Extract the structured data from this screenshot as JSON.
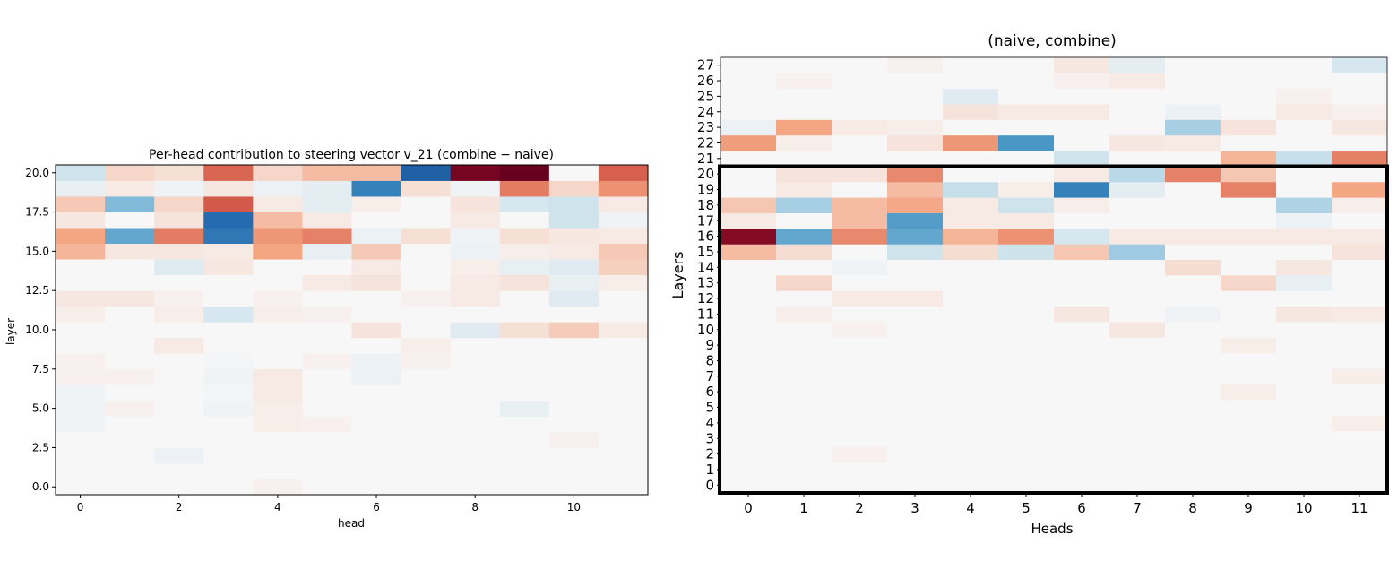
{
  "chart_data": [
    {
      "type": "heatmap",
      "title": "Per-head contribution to steering vector v_21 (combine − naive)",
      "xlabel": "head",
      "ylabel": "layer",
      "x_categories": [
        0,
        1,
        2,
        3,
        4,
        5,
        6,
        7,
        8,
        9,
        10,
        11
      ],
      "y_categories": [
        0,
        1,
        2,
        3,
        4,
        5,
        6,
        7,
        8,
        9,
        10,
        11,
        12,
        13,
        14,
        15,
        16,
        17,
        18,
        19,
        20
      ],
      "x_ticks": [
        "0",
        "2",
        "4",
        "6",
        "8",
        "10"
      ],
      "y_ticks": [
        "0.0",
        "2.5",
        "5.0",
        "7.5",
        "10.0",
        "12.5",
        "15.0",
        "17.5",
        "20.0"
      ],
      "ylim": [
        -0.5,
        20.5
      ],
      "colormap": "RdBu_r",
      "vmin": -1,
      "vmax": 1,
      "values": [
        [
          0.0,
          0.0,
          0.0,
          0.0,
          0.02,
          0.0,
          0.0,
          0.0,
          0.0,
          0.0,
          0.0,
          0.0
        ],
        [
          0.0,
          0.0,
          0.0,
          0.0,
          0.0,
          0.0,
          0.0,
          0.0,
          0.0,
          0.0,
          0.0,
          0.0
        ],
        [
          0.0,
          0.0,
          -0.03,
          0.0,
          0.0,
          0.0,
          0.0,
          0.0,
          0.0,
          0.0,
          0.0,
          0.0
        ],
        [
          0.0,
          0.0,
          0.0,
          0.0,
          0.0,
          0.0,
          0.0,
          0.0,
          0.0,
          0.0,
          0.02,
          0.0
        ],
        [
          -0.02,
          0.0,
          0.0,
          0.0,
          0.03,
          0.02,
          0.0,
          0.0,
          0.0,
          0.0,
          0.0,
          0.0
        ],
        [
          -0.02,
          0.02,
          0.0,
          -0.02,
          0.03,
          0.0,
          0.0,
          0.0,
          0.0,
          -0.04,
          0.0,
          0.0
        ],
        [
          -0.02,
          0.0,
          0.0,
          -0.01,
          0.04,
          0.0,
          0.0,
          0.0,
          0.0,
          0.0,
          0.0,
          0.0
        ],
        [
          0.02,
          0.02,
          0.0,
          -0.02,
          0.04,
          0.0,
          -0.03,
          0.0,
          0.0,
          0.0,
          0.0,
          0.0
        ],
        [
          0.02,
          0.0,
          0.0,
          -0.01,
          0.0,
          0.02,
          -0.03,
          0.02,
          0.0,
          0.0,
          0.0,
          0.0
        ],
        [
          0.0,
          0.0,
          0.04,
          0.0,
          0.0,
          0.0,
          0.0,
          0.03,
          0.0,
          0.0,
          0.0,
          0.0
        ],
        [
          0.0,
          0.0,
          0.0,
          0.0,
          0.0,
          0.0,
          0.06,
          0.0,
          -0.06,
          0.07,
          0.13,
          0.04
        ],
        [
          0.03,
          0.0,
          0.03,
          -0.08,
          0.03,
          0.02,
          0.0,
          0.0,
          0.0,
          0.0,
          0.0,
          0.0
        ],
        [
          0.05,
          0.05,
          0.02,
          0.0,
          0.02,
          0.0,
          0.0,
          0.02,
          0.04,
          0.0,
          -0.06,
          0.0
        ],
        [
          0.0,
          0.0,
          0.0,
          0.0,
          0.0,
          0.04,
          0.06,
          0.0,
          0.04,
          0.06,
          -0.04,
          0.03
        ],
        [
          0.0,
          0.0,
          -0.06,
          0.05,
          0.0,
          0.0,
          0.04,
          0.0,
          0.03,
          -0.04,
          -0.06,
          0.12
        ],
        [
          0.2,
          0.05,
          0.05,
          0.04,
          0.25,
          -0.04,
          0.14,
          0.0,
          -0.03,
          0.03,
          0.04,
          0.14
        ],
        [
          0.25,
          -0.4,
          0.4,
          -0.65,
          0.3,
          0.38,
          -0.03,
          0.07,
          -0.02,
          0.07,
          0.05,
          0.04
        ],
        [
          0.05,
          0.0,
          0.06,
          -0.72,
          0.18,
          0.04,
          0.0,
          0.0,
          0.04,
          0.0,
          -0.1,
          -0.02
        ],
        [
          0.14,
          -0.3,
          0.1,
          0.52,
          0.04,
          -0.05,
          0.03,
          0.0,
          0.06,
          -0.08,
          -0.1,
          0.04
        ],
        [
          -0.04,
          0.04,
          -0.02,
          0.05,
          -0.03,
          -0.05,
          -0.6,
          0.07,
          -0.02,
          0.4,
          0.1,
          0.32
        ],
        [
          -0.1,
          0.1,
          0.07,
          0.48,
          0.1,
          0.18,
          0.18,
          -0.78,
          0.95,
          1.0,
          0.0,
          0.5
        ]
      ]
    },
    {
      "type": "heatmap",
      "title": "(naive, combine)",
      "xlabel": "Heads",
      "ylabel": "Layers",
      "x_categories": [
        "0",
        "1",
        "2",
        "3",
        "4",
        "5",
        "6",
        "7",
        "8",
        "9",
        "10",
        "11"
      ],
      "y_categories": [
        "0",
        "1",
        "2",
        "3",
        "4",
        "5",
        "6",
        "7",
        "8",
        "9",
        "10",
        "11",
        "12",
        "13",
        "14",
        "15",
        "16",
        "17",
        "18",
        "19",
        "20",
        "21",
        "22",
        "23",
        "24",
        "25",
        "26",
        "27"
      ],
      "highlight_box_rows": [
        "0",
        "20"
      ],
      "colormap": "RdBu_r",
      "vmin": -1,
      "vmax": 1,
      "values": [
        [
          0.0,
          0.0,
          0.0,
          0.0,
          0.0,
          0.0,
          0.0,
          0.0,
          0.0,
          0.0,
          0.0,
          0.0
        ],
        [
          0.0,
          0.0,
          0.0,
          0.0,
          0.0,
          0.0,
          0.0,
          0.0,
          0.0,
          0.0,
          0.0,
          0.0
        ],
        [
          0.0,
          0.0,
          0.02,
          0.0,
          0.0,
          0.0,
          0.0,
          0.0,
          0.0,
          0.0,
          0.0,
          0.0
        ],
        [
          0.0,
          0.0,
          0.0,
          0.0,
          0.0,
          0.0,
          0.0,
          0.0,
          0.0,
          0.0,
          0.0,
          0.0
        ],
        [
          0.0,
          0.0,
          0.0,
          0.0,
          0.0,
          0.0,
          0.0,
          0.0,
          0.0,
          0.0,
          0.0,
          0.03
        ],
        [
          0.0,
          0.0,
          0.0,
          0.0,
          0.0,
          0.0,
          0.0,
          0.0,
          0.0,
          0.0,
          0.0,
          0.0
        ],
        [
          0.0,
          0.0,
          0.0,
          0.0,
          0.0,
          0.0,
          0.0,
          0.0,
          0.0,
          0.03,
          0.0,
          0.0
        ],
        [
          0.0,
          0.0,
          0.0,
          0.0,
          0.0,
          0.0,
          0.0,
          0.0,
          0.0,
          0.0,
          0.0,
          0.03
        ],
        [
          0.0,
          0.0,
          0.0,
          0.0,
          0.0,
          0.0,
          0.0,
          0.0,
          0.0,
          0.0,
          0.0,
          0.0
        ],
        [
          0.0,
          0.0,
          0.0,
          0.0,
          0.0,
          0.0,
          0.0,
          0.0,
          0.0,
          0.03,
          0.0,
          0.0
        ],
        [
          0.0,
          0.0,
          0.02,
          0.0,
          0.0,
          0.0,
          0.0,
          0.05,
          0.0,
          0.0,
          0.0,
          0.0
        ],
        [
          0.0,
          0.03,
          0.0,
          0.0,
          0.0,
          0.0,
          0.05,
          0.0,
          -0.02,
          0.0,
          0.05,
          0.04
        ],
        [
          0.0,
          0.0,
          0.04,
          0.04,
          0.0,
          0.0,
          0.0,
          0.0,
          0.0,
          0.0,
          0.0,
          0.0
        ],
        [
          0.0,
          0.1,
          0.0,
          0.0,
          0.0,
          0.0,
          0.0,
          0.0,
          0.0,
          0.1,
          -0.04,
          0.0
        ],
        [
          0.0,
          0.0,
          -0.02,
          0.0,
          0.0,
          0.0,
          0.0,
          0.0,
          0.08,
          0.0,
          0.05,
          0.0
        ],
        [
          0.18,
          0.08,
          0.0,
          -0.1,
          0.08,
          -0.1,
          0.15,
          -0.22,
          0.0,
          0.0,
          0.0,
          0.06
        ],
        [
          0.9,
          -0.4,
          0.35,
          -0.4,
          0.2,
          0.32,
          -0.08,
          0.04,
          0.04,
          0.04,
          0.04,
          0.04
        ],
        [
          0.04,
          0.0,
          0.18,
          -0.45,
          0.04,
          0.04,
          0.0,
          0.0,
          0.0,
          0.0,
          -0.03,
          0.0
        ],
        [
          0.15,
          -0.2,
          0.18,
          0.24,
          0.04,
          -0.1,
          0.03,
          0.0,
          0.0,
          0.0,
          -0.18,
          0.03
        ],
        [
          0.0,
          0.04,
          0.0,
          0.18,
          -0.12,
          0.03,
          -0.6,
          -0.05,
          0.0,
          0.38,
          0.0,
          0.25
        ],
        [
          0.0,
          0.06,
          0.06,
          0.35,
          0.0,
          0.0,
          0.04,
          -0.15,
          0.38,
          0.15,
          0.0,
          0.0
        ],
        [
          0.0,
          0.0,
          0.0,
          0.0,
          0.0,
          0.0,
          -0.1,
          0.0,
          0.0,
          0.2,
          -0.12,
          0.38
        ],
        [
          0.28,
          0.03,
          0.0,
          0.06,
          0.3,
          -0.48,
          0.0,
          0.05,
          0.04,
          0.0,
          0.0,
          0.0
        ],
        [
          -0.03,
          0.25,
          0.04,
          0.03,
          0.0,
          0.0,
          0.0,
          0.0,
          -0.2,
          0.06,
          0.0,
          0.05
        ],
        [
          0.0,
          0.0,
          0.0,
          0.0,
          0.06,
          0.04,
          0.04,
          0.0,
          -0.03,
          0.0,
          0.04,
          0.02
        ],
        [
          0.0,
          0.0,
          0.0,
          0.0,
          -0.06,
          0.0,
          0.0,
          0.0,
          0.0,
          0.0,
          0.02,
          0.0
        ],
        [
          0.0,
          0.02,
          0.0,
          0.0,
          0.0,
          0.0,
          0.02,
          0.04,
          0.0,
          0.0,
          0.0,
          0.0
        ],
        [
          0.0,
          0.0,
          0.0,
          0.02,
          0.0,
          0.0,
          0.05,
          -0.05,
          0.0,
          0.0,
          0.0,
          -0.08
        ]
      ]
    }
  ]
}
